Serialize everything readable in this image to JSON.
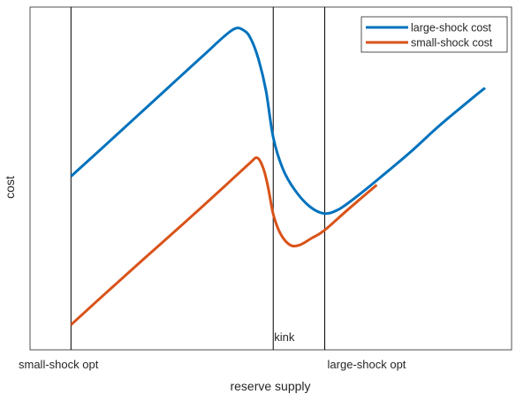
{
  "chart_data": {
    "type": "line",
    "title": "",
    "xlabel": "reserve supply",
    "ylabel": "cost",
    "xlim": [
      0,
      10
    ],
    "ylim": [
      0,
      10
    ],
    "grid": false,
    "legend_position": "top-right",
    "ticks": false,
    "vertical_lines": [
      {
        "x": 0.85,
        "label": "small-shock opt",
        "label_position": "below-axis"
      },
      {
        "x": 5.05,
        "label": "kink",
        "label_position": "inside-bottom"
      },
      {
        "x": 6.12,
        "label": "large-shock opt",
        "label_position": "below-axis"
      }
    ],
    "series": [
      {
        "name": "large-shock cost",
        "color": "#0072BD",
        "x": [
          0.85,
          1.5,
          2.2,
          2.9,
          3.6,
          4.2,
          4.45,
          4.6,
          4.75,
          4.9,
          5.05,
          5.25,
          5.5,
          5.8,
          6.1,
          6.4,
          6.8,
          7.3,
          7.9,
          8.5,
          9.2,
          9.45
        ],
        "y": [
          5.06,
          5.89,
          6.79,
          7.69,
          8.59,
          9.33,
          9.31,
          9.03,
          8.45,
          7.56,
          6.2,
          5.28,
          4.66,
          4.19,
          3.98,
          4.09,
          4.49,
          5.06,
          5.77,
          6.54,
          7.36,
          7.64
        ]
      },
      {
        "name": "small-shock cost",
        "color": "#D95319",
        "x": [
          0.85,
          1.6,
          2.4,
          3.2,
          4.0,
          4.55,
          4.72,
          4.85,
          4.95,
          5.05,
          5.2,
          5.4,
          5.6,
          5.85,
          6.1,
          6.6,
          7.2
        ],
        "y": [
          0.73,
          1.69,
          2.7,
          3.7,
          4.72,
          5.43,
          5.6,
          5.27,
          4.7,
          3.96,
          3.39,
          3.06,
          3.06,
          3.26,
          3.47,
          4.09,
          4.81
        ]
      }
    ]
  }
}
